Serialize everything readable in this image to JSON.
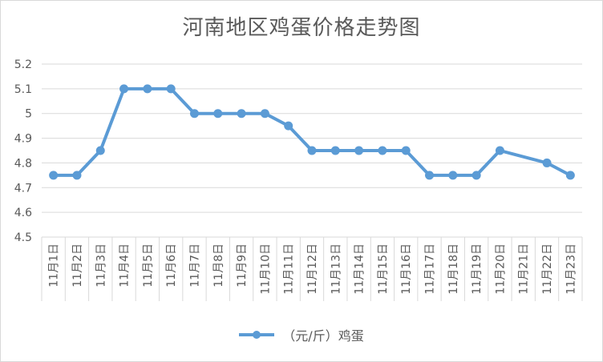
{
  "chart_data": {
    "type": "line",
    "title": "河南地区鸡蛋价格走势图",
    "categories": [
      "11月1日",
      "11月2日",
      "11月3日",
      "11月4日",
      "11月5日",
      "11月6日",
      "11月7日",
      "11月8日",
      "11月9日",
      "11月10日",
      "11月11日",
      "11月12日",
      "11月13日",
      "11月14日",
      "11月15日",
      "11月16日",
      "11月17日",
      "11月18日",
      "11月19日",
      "11月20日",
      "11月21日",
      "11月22日",
      "11月23日"
    ],
    "series": [
      {
        "name": "（元/斤）鸡蛋",
        "values": [
          4.75,
          4.75,
          4.85,
          5.1,
          5.1,
          5.1,
          5.0,
          5.0,
          5.0,
          5.0,
          4.95,
          4.85,
          4.85,
          4.85,
          4.85,
          4.85,
          4.75,
          4.75,
          4.75,
          4.85,
          null,
          4.8,
          4.75
        ]
      }
    ],
    "yticks": [
      "4.5",
      "4.6",
      "4.7",
      "4.8",
      "4.9",
      "5",
      "5.1",
      "5.2"
    ],
    "ylim": [
      4.5,
      5.2
    ],
    "xlabel": "",
    "ylabel": "",
    "grid": true,
    "legend_position": "bottom",
    "colors": {
      "series": "#5b9bd5",
      "grid": "#d9d9d9",
      "text": "#595959"
    }
  }
}
